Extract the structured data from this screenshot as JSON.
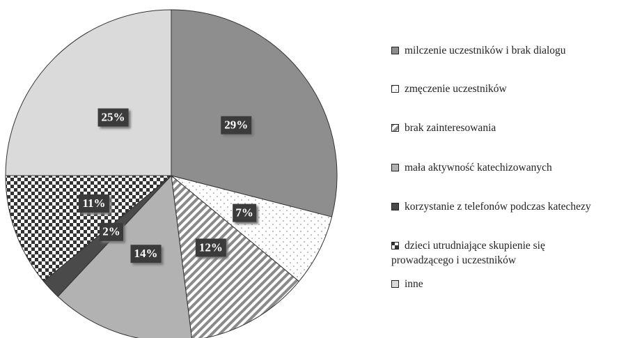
{
  "chart_data": {
    "type": "pie",
    "categories": [
      "milczenie uczestników i brak dialogu",
      "zmęczenie uczestników",
      "brak zainteresowania",
      "mała aktywność katechizowanych",
      "korzystanie z telefonów podczas katechezy",
      "dzieci utrudniające skupienie się\nprowadzącego i uczestników",
      "inne"
    ],
    "values": [
      29,
      7,
      12,
      14,
      2,
      11,
      25
    ],
    "value_labels": [
      "29%",
      "7%",
      "12%",
      "14%",
      "2%",
      "11%",
      "25%"
    ],
    "colors": [
      "#8e8e8e",
      "url(#dots)",
      "url(#stripes)",
      "#b2b2b2",
      "#4a4a4a",
      "url(#checks)",
      "#dadada"
    ]
  }
}
